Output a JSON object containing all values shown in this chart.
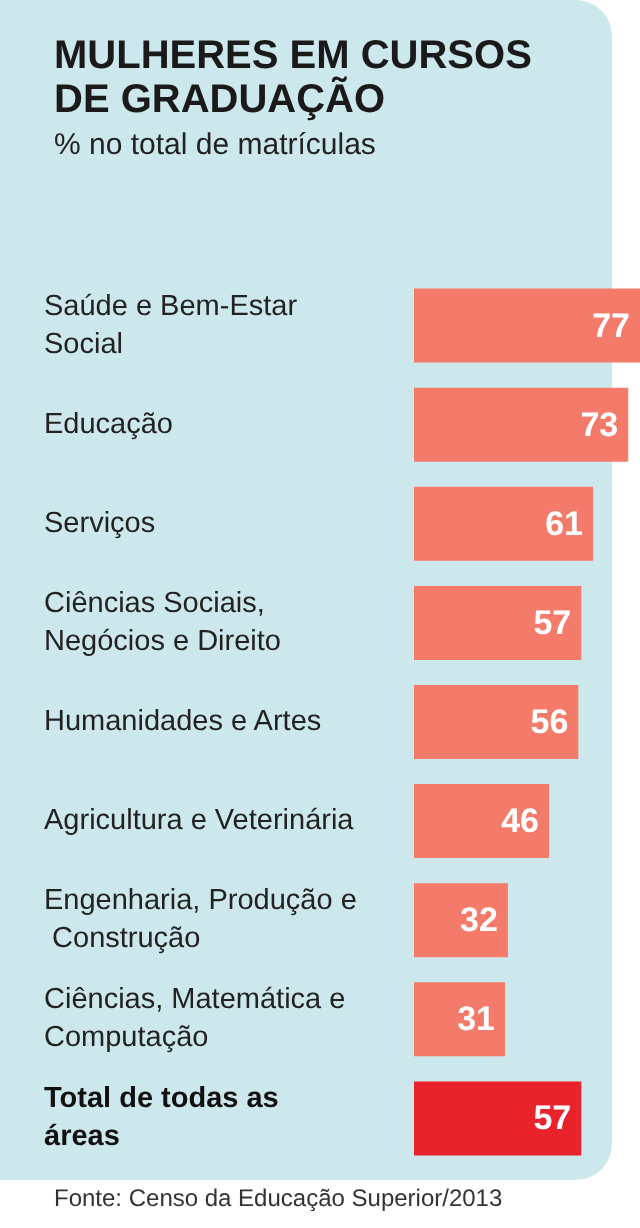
{
  "chart_data": {
    "type": "bar",
    "orientation": "horizontal",
    "title": "MULHERES EM CURSOS DE GRADUAÇÃO",
    "subtitle": "% no total de matrículas",
    "categories": [
      "Saúde e Bem-Estar Social",
      "Educação",
      "Serviços",
      "Ciências Sociais, Negócios e Direito",
      "Humanidades e Artes",
      "Agricultura e Veterinária",
      "Engenharia, Produção e Construção",
      "Ciências, Matemática e Computação",
      "Total de todas as áreas"
    ],
    "values": [
      77,
      73,
      61,
      57,
      56,
      46,
      32,
      31,
      57
    ],
    "colors": [
      "#f47a6a",
      "#f47a6a",
      "#f47a6a",
      "#f47a6a",
      "#f47a6a",
      "#f47a6a",
      "#f47a6a",
      "#f47a6a",
      "#e8232b"
    ],
    "data_labels": true,
    "annotations": [
      "Fonte: Censo da Educação Superior/2013"
    ]
  }
}
